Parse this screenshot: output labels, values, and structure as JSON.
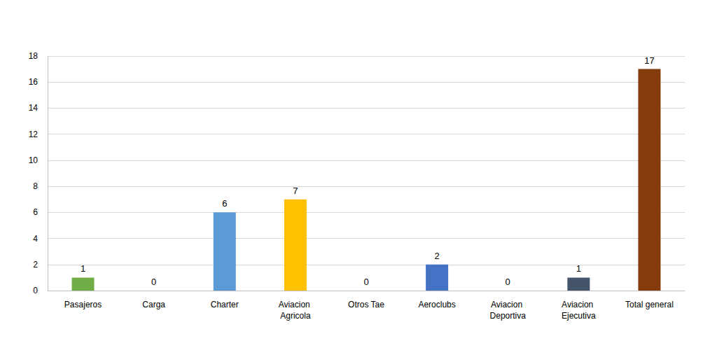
{
  "chart_data": {
    "type": "bar",
    "categories": [
      "Pasajeros",
      "Carga",
      "Charter",
      "Aviacion Agricola",
      "Otros Tae",
      "Aeroclubs",
      "Aviacion Deportiva",
      "Aviacion Ejecutiva",
      "Total general"
    ],
    "values": [
      1,
      0,
      6,
      7,
      0,
      2,
      0,
      1,
      17
    ],
    "colors": [
      "#70ad47",
      "#a5a5a5",
      "#5b9bd5",
      "#ffc000",
      "#a5a5a5",
      "#4472c4",
      "#264478",
      "#44546a",
      "#843c0c"
    ],
    "ylim": [
      0,
      18
    ],
    "yticks": [
      0,
      2,
      4,
      6,
      8,
      10,
      12,
      14,
      16,
      18
    ],
    "grid": true,
    "data_labels": true
  }
}
